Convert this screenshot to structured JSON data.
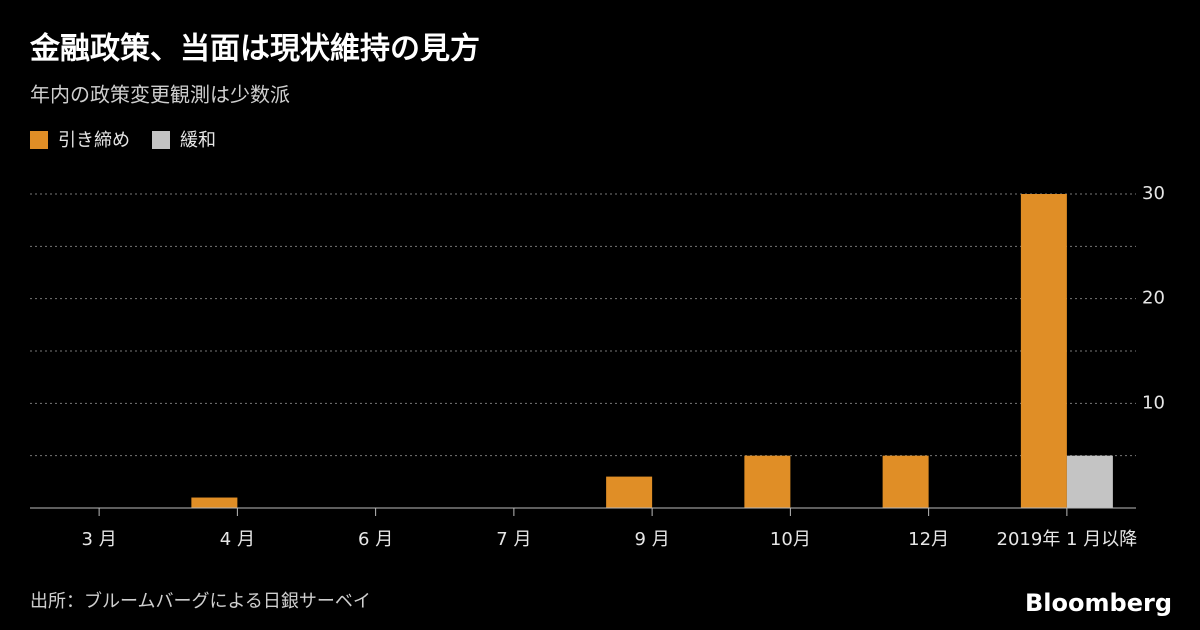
{
  "chart_data": {
    "type": "bar",
    "title": "金融政策、当面は現状維持の見方",
    "subtitle": "年内の政策変更観測は少数派",
    "categories": [
      "3 月",
      "4 月",
      "6 月",
      "7 月",
      "9 月",
      "10月",
      "12月",
      "2019年 1 月以降"
    ],
    "series": [
      {
        "name": "引き締め",
        "color": "#e08e26",
        "values": [
          0,
          1,
          0,
          0,
          3,
          5,
          5,
          30
        ]
      },
      {
        "name": "緩和",
        "color": "#c4c4c4",
        "values": [
          0,
          0,
          0,
          0,
          0,
          0,
          0,
          5
        ]
      }
    ],
    "ylim": [
      0,
      30
    ],
    "yticks": [
      10,
      20,
      30
    ],
    "minor_yticks": [
      5,
      15,
      25
    ],
    "grid": true,
    "source": "出所：ブルームバーグによる日銀サーベイ",
    "logo": "Bloomberg"
  }
}
